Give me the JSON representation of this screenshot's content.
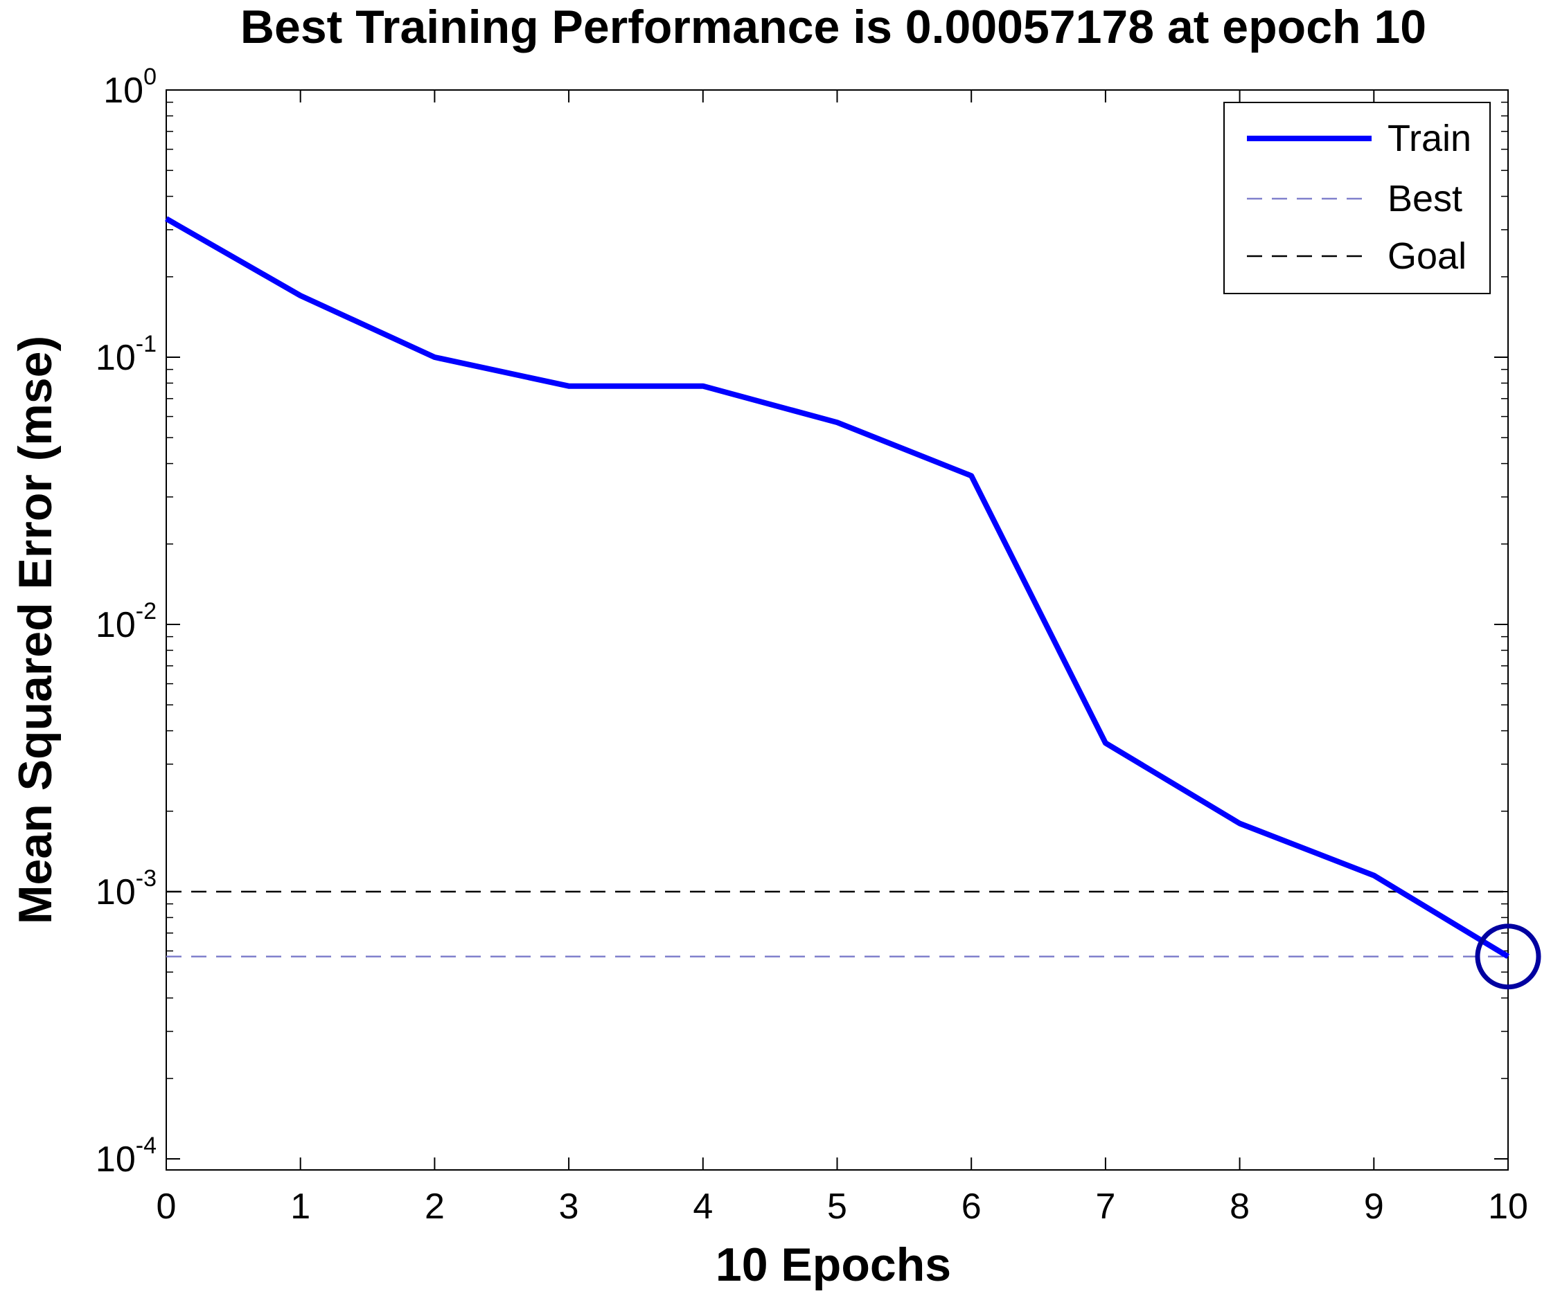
{
  "chart_data": {
    "type": "line",
    "title": "Best Training Performance is 0.00057178 at epoch 10",
    "xlabel": "10 Epochs",
    "ylabel": "Mean Squared Error  (mse)",
    "x_scale": "linear",
    "y_scale": "log",
    "xlim": [
      0,
      10
    ],
    "ylim": [
      0.0001,
      1
    ],
    "x_ticks": [
      "0",
      "1",
      "2",
      "3",
      "4",
      "5",
      "6",
      "7",
      "8",
      "9",
      "10"
    ],
    "x_tick_values": [
      0,
      1,
      2,
      3,
      4,
      5,
      6,
      7,
      8,
      9,
      10
    ],
    "y_ticks": [
      {
        "base": "10",
        "exp": "-4",
        "value": 0.0001
      },
      {
        "base": "10",
        "exp": "-3",
        "value": 0.001
      },
      {
        "base": "10",
        "exp": "-2",
        "value": 0.01
      },
      {
        "base": "10",
        "exp": "-1",
        "value": 0.1
      },
      {
        "base": "10",
        "exp": "0",
        "value": 1
      }
    ],
    "grid": false,
    "legend_position": "top-right",
    "series": [
      {
        "name": "Train",
        "style": "solid",
        "color": "#0000ff",
        "x": [
          0,
          1,
          2,
          3,
          4,
          5,
          6,
          7,
          8,
          9,
          10
        ],
        "y": [
          0.33,
          0.17,
          0.1,
          0.078,
          0.078,
          0.057,
          0.036,
          0.0036,
          0.0018,
          0.00115,
          0.00057178
        ]
      },
      {
        "name": "Best",
        "style": "dashed",
        "color": "#8080cc",
        "x": [
          0,
          10
        ],
        "y": [
          0.00057178,
          0.00057178
        ]
      },
      {
        "name": "Goal",
        "style": "dashed",
        "color": "#000000",
        "x": [
          0,
          10
        ],
        "y": [
          0.001,
          0.001
        ]
      }
    ],
    "best_marker": {
      "x": 10,
      "y": 0.00057178,
      "shape": "circle",
      "color": "#0000a0"
    }
  }
}
